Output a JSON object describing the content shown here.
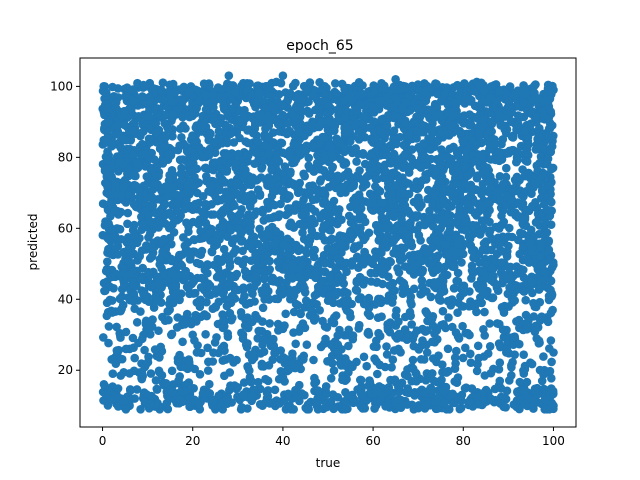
{
  "chart_data": {
    "type": "scatter",
    "title": "epoch_65",
    "xlabel": "true",
    "ylabel": "predicted",
    "xlim": [
      -5,
      105
    ],
    "ylim": [
      4,
      108
    ],
    "xticks": [
      0,
      20,
      40,
      60,
      80,
      100
    ],
    "yticks": [
      20,
      40,
      60,
      80,
      100
    ],
    "grid": false,
    "marker_color": "#1f77b4",
    "approx_point_count": 5000,
    "x_range": [
      0,
      100
    ],
    "y_range": [
      9,
      103
    ],
    "note": "dense point cloud; predicted values concentrated between 40 and 100 across all true values, sparser from 10 to 40",
    "sample_points": [
      [
        0.5,
        100
      ],
      [
        1,
        45
      ],
      [
        1,
        39
      ],
      [
        2,
        85
      ],
      [
        2,
        68
      ],
      [
        3,
        12
      ],
      [
        5,
        10
      ],
      [
        6,
        26
      ],
      [
        8,
        57
      ],
      [
        10,
        11
      ],
      [
        12,
        24
      ],
      [
        15,
        40
      ],
      [
        18,
        75
      ],
      [
        20,
        30
      ],
      [
        22,
        90
      ],
      [
        25,
        9
      ],
      [
        28,
        103
      ],
      [
        30,
        60
      ],
      [
        33,
        17
      ],
      [
        35,
        80
      ],
      [
        38,
        45
      ],
      [
        40,
        103
      ],
      [
        42,
        22
      ],
      [
        45,
        70
      ],
      [
        48,
        95
      ],
      [
        50,
        10
      ],
      [
        52,
        55
      ],
      [
        55,
        35
      ],
      [
        58,
        88
      ],
      [
        60,
        65
      ],
      [
        62,
        15
      ],
      [
        65,
        102
      ],
      [
        68,
        42
      ],
      [
        70,
        78
      ],
      [
        72,
        25
      ],
      [
        75,
        60
      ],
      [
        78,
        92
      ],
      [
        80,
        38
      ],
      [
        82,
        12
      ],
      [
        84,
        101
      ],
      [
        86,
        70
      ],
      [
        88,
        33
      ],
      [
        90,
        55
      ],
      [
        92,
        14
      ],
      [
        94,
        85
      ],
      [
        96,
        46
      ],
      [
        98,
        20
      ],
      [
        100,
        10
      ],
      [
        100,
        25
      ],
      [
        100,
        99
      ]
    ]
  }
}
